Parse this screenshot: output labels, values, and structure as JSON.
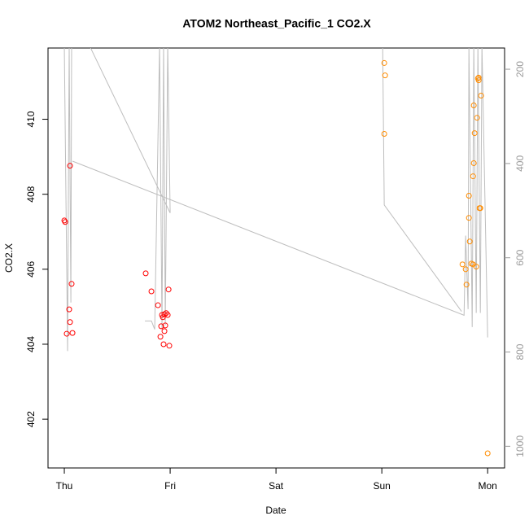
{
  "chart_data": {
    "type": "scatter",
    "title": "ATOM2 Northeast_Pacific_1 CO2.X",
    "x_label": "Date",
    "y_label": "CO2.X",
    "xlim": [
      -0.154,
      4.16
    ],
    "xticks": [
      {
        "value": 0,
        "label": "Thu"
      },
      {
        "value": 1,
        "label": "Fri"
      },
      {
        "value": 2,
        "label": "Sat"
      },
      {
        "value": 3,
        "label": "Sun"
      },
      {
        "value": 4,
        "label": "Mon"
      }
    ],
    "ylim": [
      400.7,
      411.9
    ],
    "yticks": [
      402,
      404,
      406,
      408,
      410
    ],
    "y2lim": [
      1046,
      155
    ],
    "y2ticks": [
      200,
      400,
      600,
      800,
      1000
    ],
    "series": [
      {
        "type": "line",
        "axis": "y2",
        "color": "#bebebe",
        "x": [
          0,
          0.031,
          0.046,
          0.062,
          0.069,
          null,
          0.238,
          1.0,
          0.977,
          0.954,
          0.938,
          0.923,
          0.9,
          0.854,
          0.823,
          0.762,
          null,
          0.077,
          3.777,
          3.792,
          3.815,
          3.823,
          3.854,
          3.869,
          3.892,
          3.908,
          3.931,
          3.946,
          4.0,
          null,
          3.008,
          3.023,
          3.754
        ],
        "values": [
          150,
          798,
          150,
          695,
          150,
          null,
          150,
          505,
          150,
          743,
          150,
          752,
          150,
          752,
          734,
          734,
          null,
          395,
          722,
          553,
          709,
          150,
          747,
          150,
          717,
          150,
          717,
          150,
          769,
          null,
          150,
          488,
          714
        ]
      },
      {
        "type": "scatter",
        "color": "#ff0000",
        "x": [
          0.0,
          0.008,
          0.023,
          0.046,
          0.054,
          0.054,
          0.069,
          0.077,
          0.769,
          0.823,
          0.885,
          0.908,
          0.915,
          0.923,
          0.931,
          0.938,
          0.946,
          0.946,
          0.954,
          0.962,
          0.977,
          0.985,
          0.992
        ],
        "values": [
          407.3,
          407.26,
          404.28,
          404.93,
          408.76,
          404.59,
          405.61,
          404.3,
          405.89,
          405.41,
          405.04,
          404.2,
          404.48,
          404.78,
          404.72,
          404.0,
          404.8,
          404.35,
          404.5,
          404.83,
          404.78,
          405.46,
          403.96
        ]
      },
      {
        "type": "scatter",
        "color": "#ff8c00",
        "x": [
          3.023,
          3.031,
          3.023,
          3.762,
          3.792,
          3.8,
          3.823,
          3.823,
          3.831,
          3.846,
          3.862,
          3.862,
          3.869,
          3.869,
          3.877,
          3.892,
          3.9,
          3.908,
          3.915,
          3.915,
          3.923,
          3.931,
          3.938,
          4.0
        ],
        "values": [
          411.5,
          411.17,
          409.61,
          406.13,
          406.0,
          405.59,
          407.96,
          407.37,
          406.74,
          406.15,
          406.13,
          408.48,
          408.83,
          410.37,
          409.63,
          406.07,
          410.04,
          411.09,
          411.11,
          411.04,
          407.63,
          407.63,
          410.63,
          401.09
        ]
      }
    ]
  }
}
